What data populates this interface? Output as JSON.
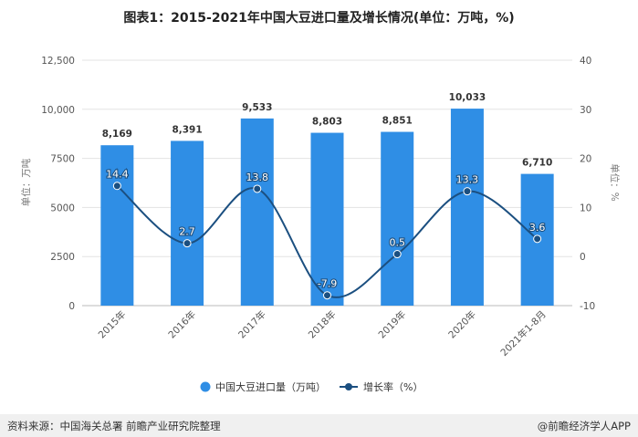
{
  "title": "图表1：2015-2021年中国大豆进口量及增长情况(单位：万吨，%)",
  "footer": {
    "source": "资料来源：中国海关总署 前瞻产业研究院整理",
    "brand": "@前瞻经济学人APP"
  },
  "chart_data": {
    "type": "bar",
    "categories": [
      "2015年",
      "2016年",
      "2017年",
      "2018年",
      "2019年",
      "2020年",
      "2021年1-8月"
    ],
    "series": [
      {
        "name": "中国大豆进口量（万吨）",
        "type": "bar",
        "axis": "left",
        "values": [
          8169,
          8391,
          9533,
          8803,
          8851,
          10033,
          6710
        ],
        "labels": [
          "8,169",
          "8,391",
          "9,533",
          "8,803",
          "8,851",
          "10,033",
          "6,710"
        ],
        "color": "#2f8ee5"
      },
      {
        "name": "增长率（%）",
        "type": "line",
        "axis": "right",
        "values": [
          14.4,
          2.7,
          13.8,
          -7.9,
          0.5,
          13.3,
          3.6
        ],
        "labels": [
          "14.4",
          "2.7",
          "13.8",
          "-7.9",
          "0.5",
          "13.3",
          "3.6"
        ],
        "color": "#1b4f80"
      }
    ],
    "ylabel": "单位：万吨",
    "y2label": "单位：%",
    "ylim": [
      0,
      12500
    ],
    "y2lim": [
      -10,
      40
    ],
    "yticks": [
      "0",
      "2500",
      "5000",
      "7500",
      "10,000",
      "12,500"
    ],
    "y2ticks": [
      "-10",
      "0",
      "10",
      "20",
      "30",
      "40"
    ],
    "grid": true,
    "legend_position": "bottom"
  }
}
